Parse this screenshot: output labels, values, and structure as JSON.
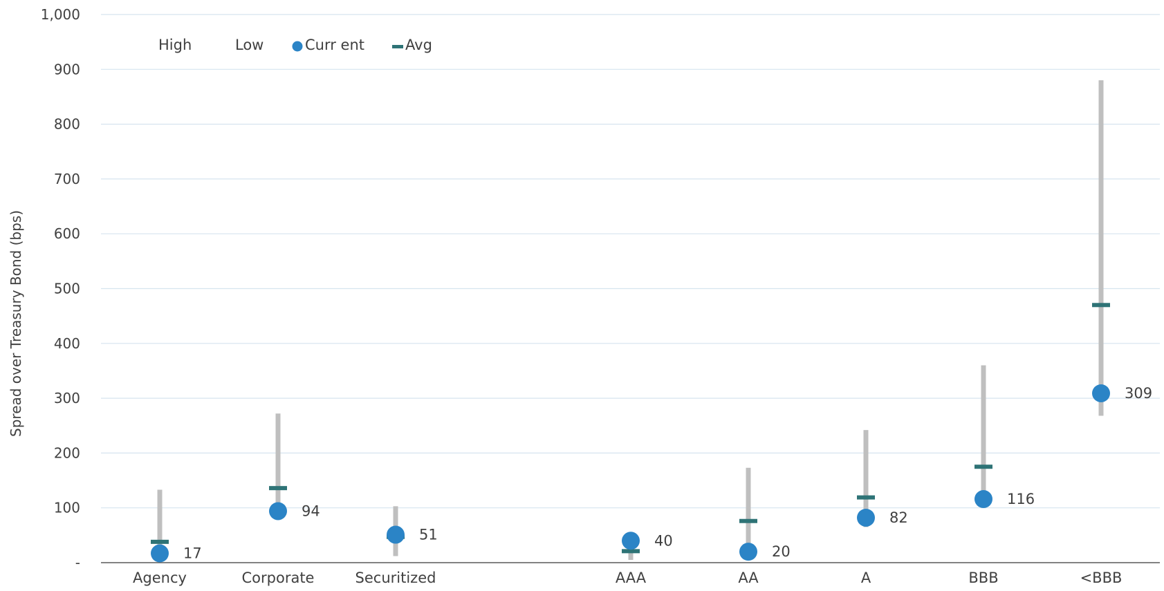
{
  "chart_data": {
    "type": "scatter",
    "ylabel": "Spread over Treasury Bond (bps)",
    "ylim": [
      0,
      1000
    ],
    "yticks": [
      0,
      100,
      200,
      300,
      400,
      500,
      600,
      700,
      800,
      900,
      1000
    ],
    "ytick_labels": [
      "-",
      "100",
      "200",
      "300",
      "400",
      "500",
      "600",
      "700",
      "800",
      "900",
      "1,000"
    ],
    "grid": true,
    "legend": {
      "placement": "top-left",
      "entries": [
        "High",
        "Low",
        "Curr ent",
        "Avg"
      ]
    },
    "categories": [
      "Agency",
      "Corporate",
      "Securitized",
      "AAA",
      "AA",
      "A",
      "BBB",
      "<BBB"
    ],
    "series": [
      {
        "name": "High",
        "values": [
          133,
          272,
          103,
          40,
          173,
          242,
          360,
          880
        ]
      },
      {
        "name": "Low",
        "values": [
          12,
          90,
          12,
          5,
          15,
          65,
          100,
          268
        ]
      },
      {
        "name": "Curr ent",
        "values": [
          17,
          94,
          51,
          40,
          20,
          82,
          116,
          309
        ]
      },
      {
        "name": "Avg",
        "values": [
          38,
          136,
          47,
          21,
          76,
          119,
          175,
          470
        ]
      }
    ],
    "data_labels": [
      "17",
      "94",
      "51",
      "40",
      "20",
      "82",
      "116",
      "309"
    ]
  },
  "colors": {
    "range_bar": "#bfbfbf",
    "current_marker": "#2b84c6",
    "avg_marker": "#2e7376",
    "gridline": "#d6e4ef",
    "axis": "#595959"
  }
}
